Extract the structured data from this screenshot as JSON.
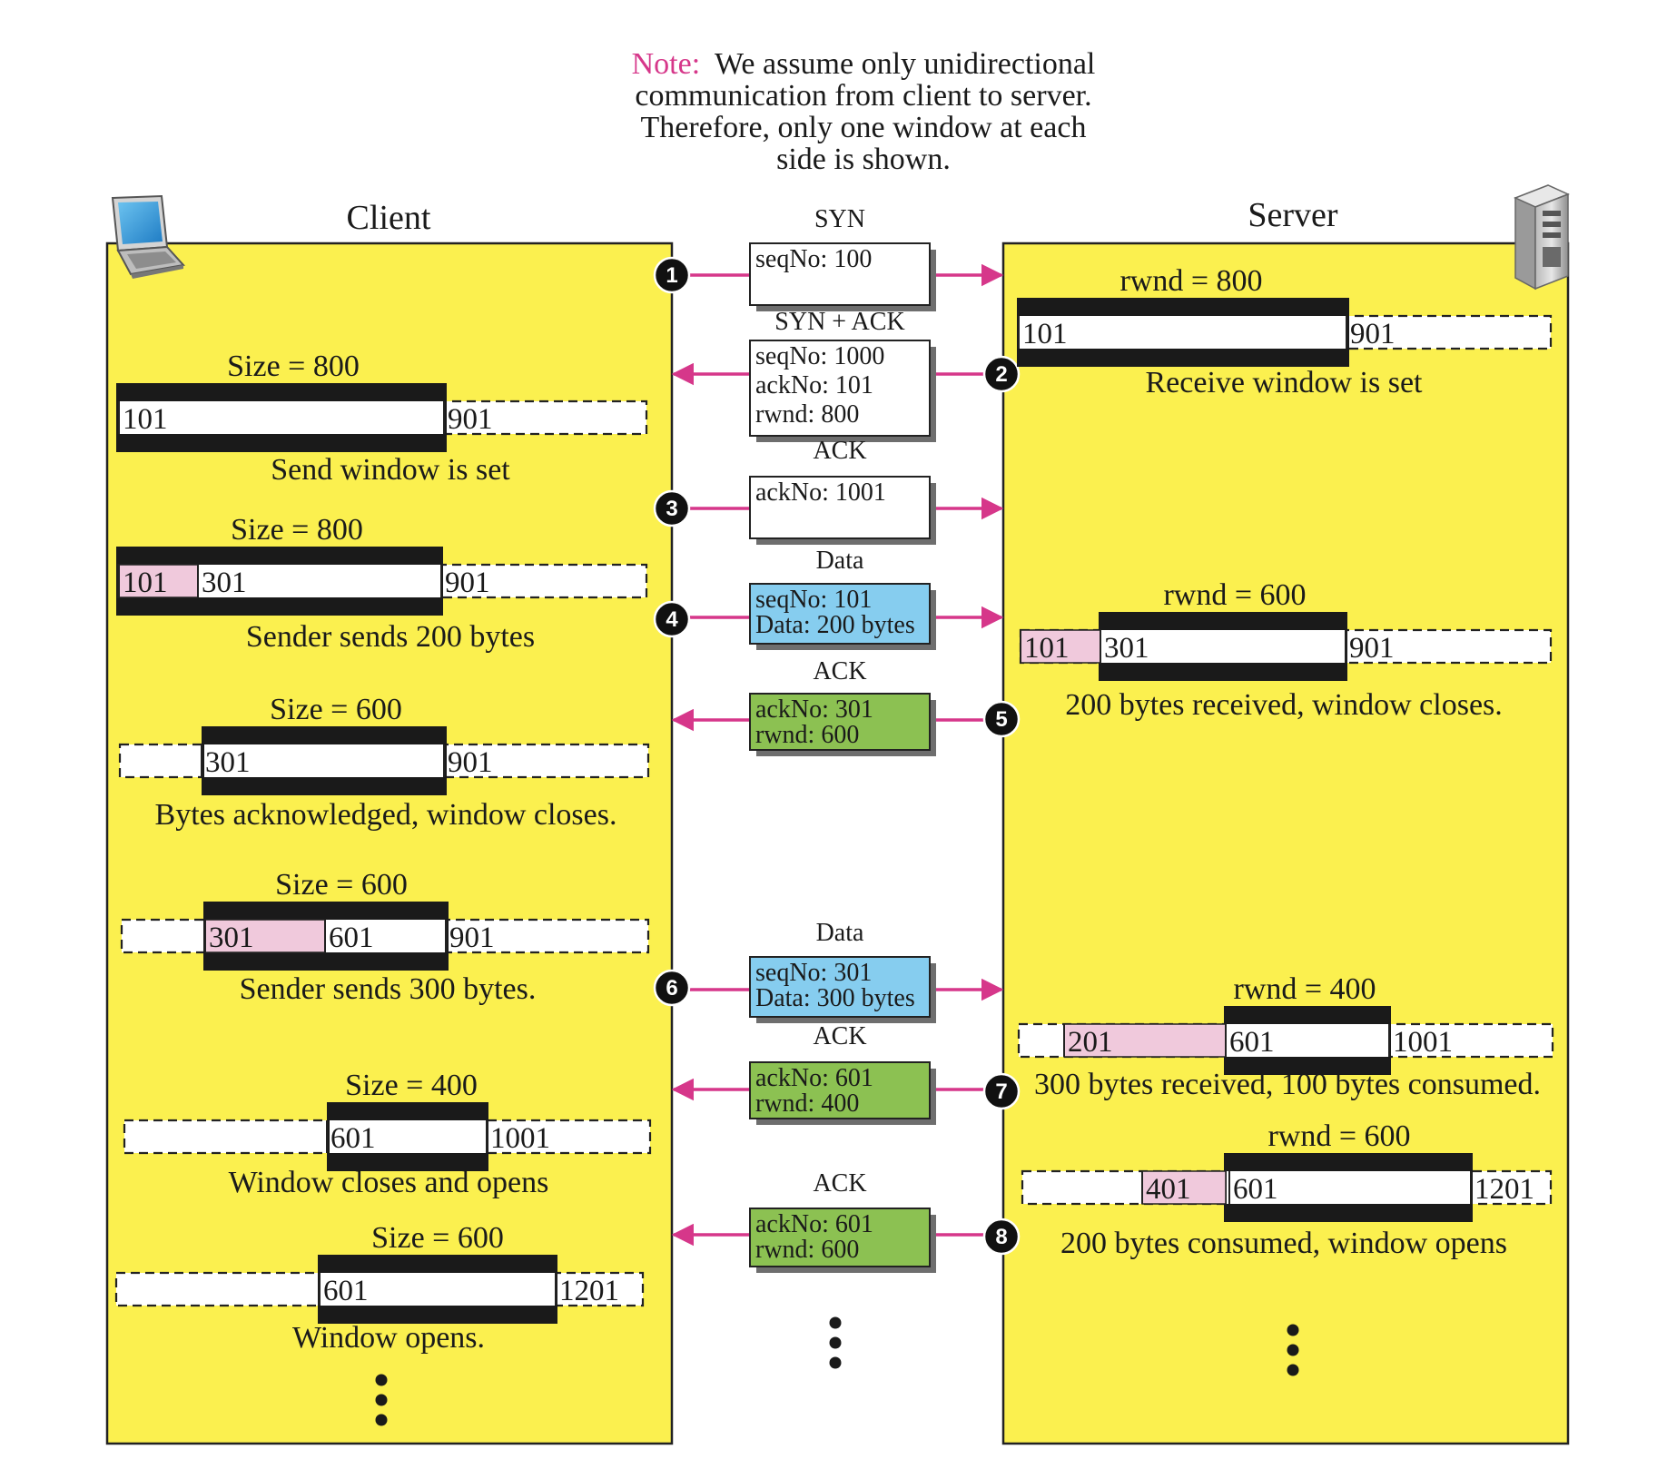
{
  "note": {
    "label": "Note:",
    "lines": [
      "We assume only unidirectional",
      "communication from client to server.",
      "Therefore, only one window at each",
      "side is shown."
    ]
  },
  "client": {
    "title": "Client"
  },
  "server": {
    "title": "Server"
  },
  "colors": {
    "panel": "#fbf04f",
    "arrow": "#d6378a",
    "note": "#d6378a",
    "sent_bytes": "#f0c9dc",
    "data_msg": "#86cdef",
    "ack_msg": "#8cc152",
    "window_frame": "#1a1a1a"
  },
  "messages": [
    {
      "step": "1",
      "title": "SYN",
      "lines": [
        "seqNo: 100"
      ],
      "direction": "to-server",
      "kind": "control"
    },
    {
      "step": "2",
      "title": "SYN + ACK",
      "lines": [
        "seqNo: 1000",
        "ackNo: 101",
        "rwnd: 800"
      ],
      "direction": "to-client",
      "kind": "control"
    },
    {
      "step": "3",
      "title": "ACK",
      "lines": [
        "ackNo: 1001"
      ],
      "direction": "to-server",
      "kind": "control"
    },
    {
      "step": "4",
      "title": "Data",
      "lines": [
        "seqNo: 101",
        "Data: 200 bytes"
      ],
      "direction": "to-server",
      "kind": "data"
    },
    {
      "step": "5",
      "title": "ACK",
      "lines": [
        "ackNo: 301",
        "rwnd: 600"
      ],
      "direction": "to-client",
      "kind": "ack"
    },
    {
      "step": "6",
      "title": "Data",
      "lines": [
        "seqNo: 301",
        "Data: 300 bytes"
      ],
      "direction": "to-server",
      "kind": "data"
    },
    {
      "step": "7",
      "title": "ACK",
      "lines": [
        "ackNo: 601",
        "rwnd: 400"
      ],
      "direction": "to-client",
      "kind": "ack"
    },
    {
      "step": "8",
      "title": "ACK",
      "lines": [
        "ackNo: 601",
        "rwnd: 600"
      ],
      "direction": "to-client",
      "kind": "ack"
    }
  ],
  "client_windows": [
    {
      "size_label": "Size = 800",
      "cells": [
        "101",
        "901"
      ],
      "caption": "Send window is set"
    },
    {
      "size_label": "Size = 800",
      "cells": [
        "101",
        "301",
        "901"
      ],
      "caption": "Sender sends 200 bytes"
    },
    {
      "size_label": "Size = 600",
      "cells": [
        "301",
        "901"
      ],
      "caption": "Bytes acknowledged, window closes."
    },
    {
      "size_label": "Size = 600",
      "cells": [
        "301",
        "601",
        "901"
      ],
      "caption": "Sender sends 300 bytes."
    },
    {
      "size_label": "Size = 400",
      "cells": [
        "601",
        "1001"
      ],
      "caption": "Window closes and opens"
    },
    {
      "size_label": "Size = 600",
      "cells": [
        "601",
        "1201"
      ],
      "caption": "Window opens."
    }
  ],
  "server_windows": [
    {
      "size_label": "rwnd = 800",
      "cells": [
        "101",
        "901"
      ],
      "caption": "Receive window is set"
    },
    {
      "size_label": "rwnd = 600",
      "cells": [
        "101",
        "301",
        "901"
      ],
      "caption": "200 bytes received, window closes."
    },
    {
      "size_label": "rwnd = 400",
      "cells": [
        "201",
        "601",
        "1001"
      ],
      "caption": "300 bytes received, 100 bytes consumed."
    },
    {
      "size_label": "rwnd = 600",
      "cells": [
        "401",
        "601",
        "1201"
      ],
      "caption": "200 bytes consumed, window opens"
    }
  ]
}
